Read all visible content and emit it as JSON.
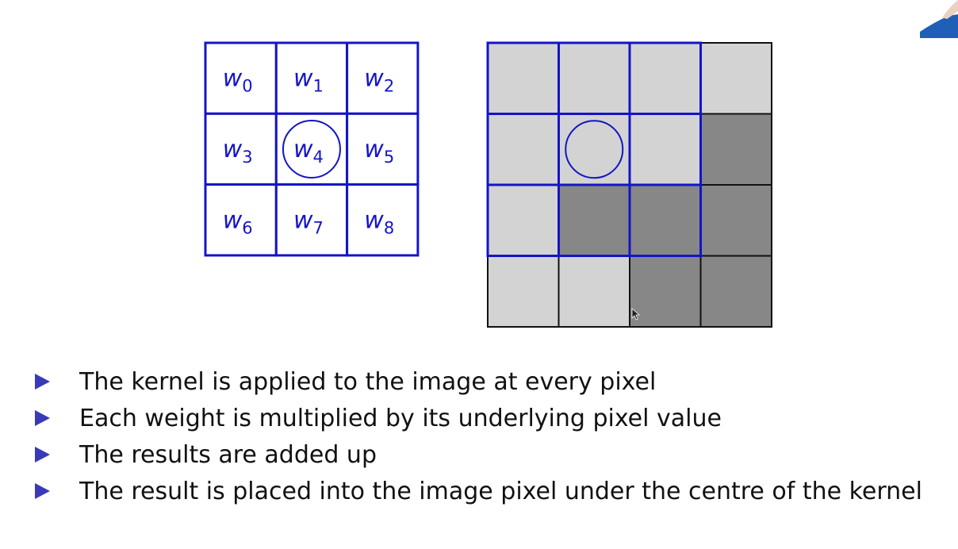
{
  "kernel": {
    "rows": 3,
    "cols": 3,
    "weights": [
      {
        "base": "w",
        "sub": "0"
      },
      {
        "base": "w",
        "sub": "1"
      },
      {
        "base": "w",
        "sub": "2"
      },
      {
        "base": "w",
        "sub": "3"
      },
      {
        "base": "w",
        "sub": "4"
      },
      {
        "base": "w",
        "sub": "5"
      },
      {
        "base": "w",
        "sub": "6"
      },
      {
        "base": "w",
        "sub": "7"
      },
      {
        "base": "w",
        "sub": "8"
      }
    ],
    "centre_index": 4
  },
  "image": {
    "rows": 4,
    "cols": 4,
    "pixels": [
      [
        "light",
        "light",
        "light",
        "light"
      ],
      [
        "light",
        "light",
        "light",
        "dark"
      ],
      [
        "light",
        "dark",
        "dark",
        "dark"
      ],
      [
        "light",
        "light",
        "dark",
        "dark"
      ]
    ],
    "kernel_overlay": {
      "row": 0,
      "col": 0,
      "size": 3
    },
    "centre_marker": {
      "row": 1,
      "col": 1
    }
  },
  "colors": {
    "kernel_blue": "#1414c8",
    "light_pixel": "#d3d3d3",
    "dark_pixel": "#878787",
    "grid_black": "#111111",
    "bullet": "#3a3ab8",
    "text": "#111111"
  },
  "bullets": [
    "The kernel is applied to the image at every pixel",
    "Each weight is multiplied by its underlying pixel value",
    "The results are added up",
    "The result is placed into the image pixel under the centre of the kernel"
  ]
}
